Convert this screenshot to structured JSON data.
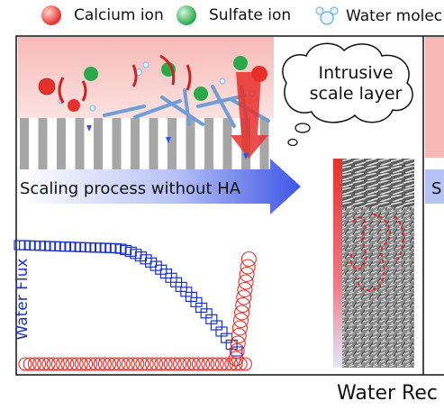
{
  "legend": {
    "calcium": {
      "label": "Calcium ion",
      "color": "#e8302a"
    },
    "sulfate": {
      "label": "Sulfate ion",
      "color": "#2aa94a"
    },
    "water": {
      "label": "Water molec",
      "color": "#7fb8e8"
    }
  },
  "panel": {
    "process_label": "Scaling process without HA",
    "process_label_2": "S",
    "bubble_line1": "Intrusive",
    "bubble_line2": "scale layer"
  },
  "plot": {
    "y_label": "Water Flux",
    "x_label": "Water Rec",
    "flux_color": "#1a32c8",
    "scale_color": "#e8302a"
  }
}
